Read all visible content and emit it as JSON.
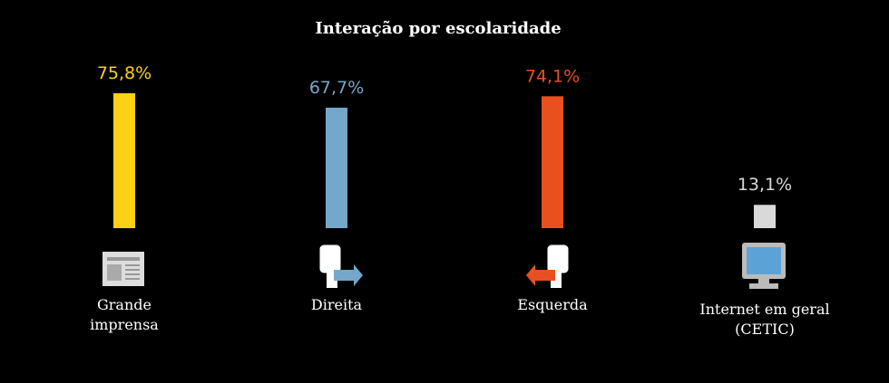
{
  "chart_data": {
    "type": "bar",
    "title": "Interação por escolaridade",
    "categories": [
      "Grande imprensa",
      "Direita",
      "Esquerda",
      "Internet em geral (CETIC)"
    ],
    "values": [
      75.8,
      67.7,
      74.1,
      13.1
    ],
    "value_labels": [
      "75,8%",
      "67,7%",
      "74,1%",
      "13,1%"
    ],
    "colors": [
      "#fcd116",
      "#75a7cb",
      "#e8501f",
      "#d9d9d9"
    ]
  }
}
